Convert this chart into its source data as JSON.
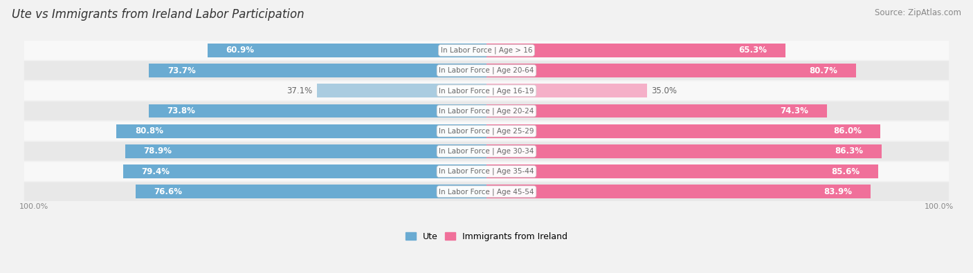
{
  "title": "Ute vs Immigrants from Ireland Labor Participation",
  "source": "Source: ZipAtlas.com",
  "categories": [
    "In Labor Force | Age > 16",
    "In Labor Force | Age 20-64",
    "In Labor Force | Age 16-19",
    "In Labor Force | Age 20-24",
    "In Labor Force | Age 25-29",
    "In Labor Force | Age 30-34",
    "In Labor Force | Age 35-44",
    "In Labor Force | Age 45-54"
  ],
  "ute_values": [
    60.9,
    73.7,
    37.1,
    73.8,
    80.8,
    78.9,
    79.4,
    76.6
  ],
  "ireland_values": [
    65.3,
    80.7,
    35.0,
    74.3,
    86.0,
    86.3,
    85.6,
    83.9
  ],
  "ute_color": "#6aabd2",
  "ute_color_light": "#aacce0",
  "ireland_color": "#f0709a",
  "ireland_color_light": "#f5b0c8",
  "label_color_white": "#ffffff",
  "label_color_dark": "#666666",
  "bg_color": "#f2f2f2",
  "row_color_odd": "#e8e8e8",
  "row_color_even": "#f8f8f8",
  "max_value": 100.0,
  "bar_height": 0.68,
  "title_fontsize": 12,
  "source_fontsize": 8.5,
  "val_fontsize": 8.5,
  "cat_fontsize": 7.5,
  "legend_fontsize": 9,
  "footer_fontsize": 8
}
